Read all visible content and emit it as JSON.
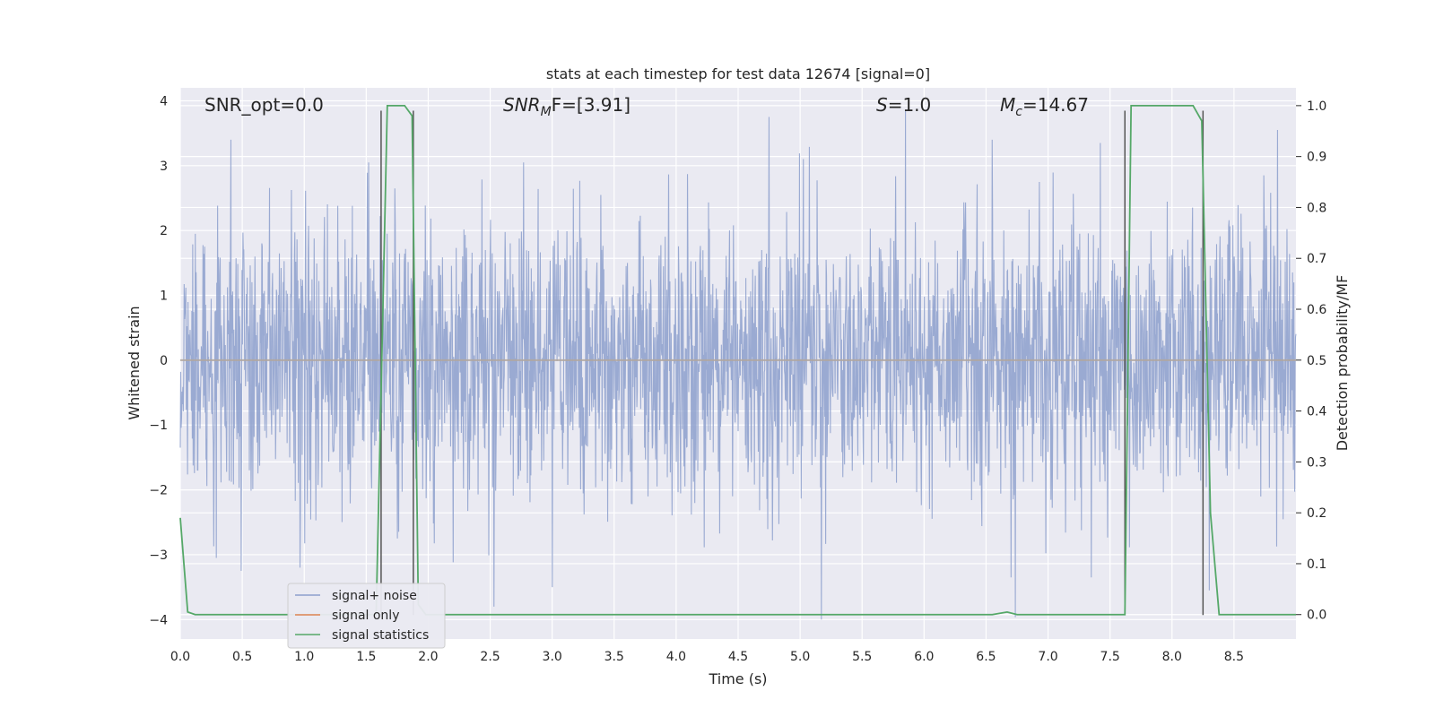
{
  "chart_data": {
    "type": "line",
    "title": "stats at each timestep for test data 12674 [signal=0]",
    "xlabel": "Time (s)",
    "ylabel": "Whitened strain",
    "y2label": "Detection probability/MF",
    "xlim": [
      0.0,
      9.0
    ],
    "ylim": [
      -4.3,
      4.2
    ],
    "y2lim": [
      -0.048,
      1.035
    ],
    "xticks": [
      "0.0",
      "0.5",
      "1.0",
      "1.5",
      "2.0",
      "2.5",
      "3.0",
      "3.5",
      "4.0",
      "4.5",
      "5.0",
      "5.5",
      "6.0",
      "6.5",
      "7.0",
      "7.5",
      "8.0",
      "8.5"
    ],
    "yticks": [
      "4",
      "3",
      "2",
      "1",
      "0",
      "−1",
      "−2",
      "−3",
      "−4"
    ],
    "y2ticks": [
      "1.0",
      "0.9",
      "0.8",
      "0.7",
      "0.6",
      "0.5",
      "0.4",
      "0.3",
      "0.2",
      "0.1",
      "0.0"
    ],
    "grid": true,
    "legend_position": "lower-left",
    "annotations": {
      "snr_opt": "SNR_opt=0.0",
      "snr_mf_base": "SNR",
      "snr_mf_sub": "M",
      "snr_mf_rest": "F=[3.91]",
      "s_italic": "S",
      "s_rest": "=1.0",
      "mc_italic": "M",
      "mc_sub": "c",
      "mc_rest": "=14.67"
    },
    "series": [
      {
        "name": "signal+ noise",
        "color": "#8c9fcd",
        "envelope": {
          "typical_abs": 1.6,
          "peak_max": 3.85,
          "peak_min": -4.0
        },
        "spikes": [
          {
            "x": 0.41,
            "y": 3.4
          },
          {
            "x": 1.52,
            "y": 3.05
          },
          {
            "x": 2.77,
            "y": 3.05
          },
          {
            "x": 4.75,
            "y": 3.75
          },
          {
            "x": 5.85,
            "y": 3.85
          },
          {
            "x": 6.55,
            "y": 3.4
          },
          {
            "x": 7.42,
            "y": 3.35
          },
          {
            "x": 8.85,
            "y": 3.55
          },
          {
            "x": 0.29,
            "y": -3.05
          },
          {
            "x": 2.53,
            "y": -3.8
          },
          {
            "x": 3.0,
            "y": -3.5
          },
          {
            "x": 5.17,
            "y": -4.0
          },
          {
            "x": 7.35,
            "y": -3.35
          },
          {
            "x": 8.3,
            "y": -3.55
          },
          {
            "x": 6.7,
            "y": -3.35
          },
          {
            "x": 0.49,
            "y": -3.25
          }
        ]
      },
      {
        "name": "signal only",
        "color": "#dd8452",
        "value": 0
      },
      {
        "name": "signal statistics",
        "color": "#55a868",
        "points": [
          [
            0.0,
            0.19
          ],
          [
            0.06,
            0.005
          ],
          [
            0.12,
            0.0
          ],
          [
            1.5,
            0.0
          ],
          [
            1.58,
            0.0
          ],
          [
            1.63,
            0.55
          ],
          [
            1.67,
            1.0
          ],
          [
            1.81,
            1.0
          ],
          [
            1.87,
            0.98
          ],
          [
            1.92,
            0.02
          ],
          [
            1.98,
            0.0
          ],
          [
            6.55,
            0.0
          ],
          [
            6.67,
            0.005
          ],
          [
            6.75,
            0.0
          ],
          [
            7.62,
            0.0
          ],
          [
            7.67,
            1.0
          ],
          [
            8.17,
            1.0
          ],
          [
            8.24,
            0.97
          ],
          [
            8.31,
            0.2
          ],
          [
            8.38,
            0.0
          ],
          [
            9.0,
            0.0
          ]
        ]
      }
    ],
    "vertical_lines": [
      1.62,
      1.88,
      7.62,
      8.25
    ],
    "vertical_line_range": [
      -0.001,
      0.99
    ]
  }
}
